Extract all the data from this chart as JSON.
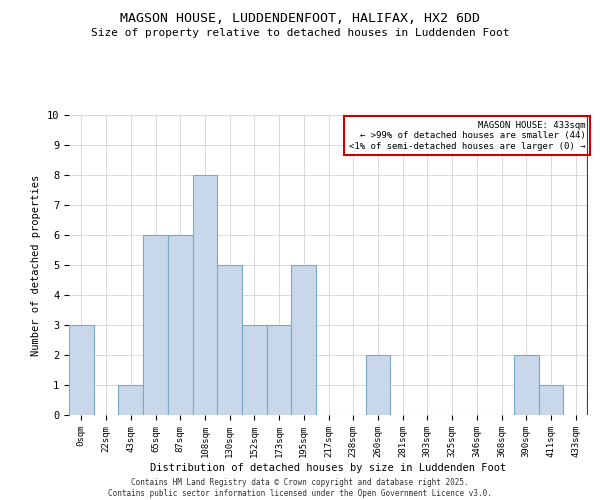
{
  "title": "MAGSON HOUSE, LUDDENDENFOOT, HALIFAX, HX2 6DD",
  "subtitle": "Size of property relative to detached houses in Luddenden Foot",
  "xlabel": "Distribution of detached houses by size in Luddenden Foot",
  "ylabel": "Number of detached properties",
  "bar_labels": [
    "0sqm",
    "22sqm",
    "43sqm",
    "65sqm",
    "87sqm",
    "108sqm",
    "130sqm",
    "152sqm",
    "173sqm",
    "195sqm",
    "217sqm",
    "238sqm",
    "260sqm",
    "281sqm",
    "303sqm",
    "325sqm",
    "346sqm",
    "368sqm",
    "390sqm",
    "411sqm",
    "433sqm"
  ],
  "bar_values": [
    3,
    0,
    1,
    6,
    6,
    8,
    5,
    3,
    3,
    5,
    0,
    0,
    2,
    0,
    0,
    0,
    0,
    0,
    2,
    1,
    0
  ],
  "bar_color": "#c8d8ea",
  "bar_edge_color": "#7aaac8",
  "highlight_color": "#cc0000",
  "ylim": [
    0,
    10
  ],
  "yticks": [
    0,
    1,
    2,
    3,
    4,
    5,
    6,
    7,
    8,
    9,
    10
  ],
  "annotation_title": "MAGSON HOUSE: 433sqm",
  "annotation_line1": "← >99% of detached houses are smaller (44)",
  "annotation_line2": "<1% of semi-detached houses are larger (0) →",
  "annotation_box_color": "#ffffff",
  "annotation_box_edge_color": "#cc0000",
  "footer_line1": "Contains HM Land Registry data © Crown copyright and database right 2025.",
  "footer_line2": "Contains public sector information licensed under the Open Government Licence v3.0.",
  "background_color": "#ffffff",
  "grid_color": "#cccccc"
}
